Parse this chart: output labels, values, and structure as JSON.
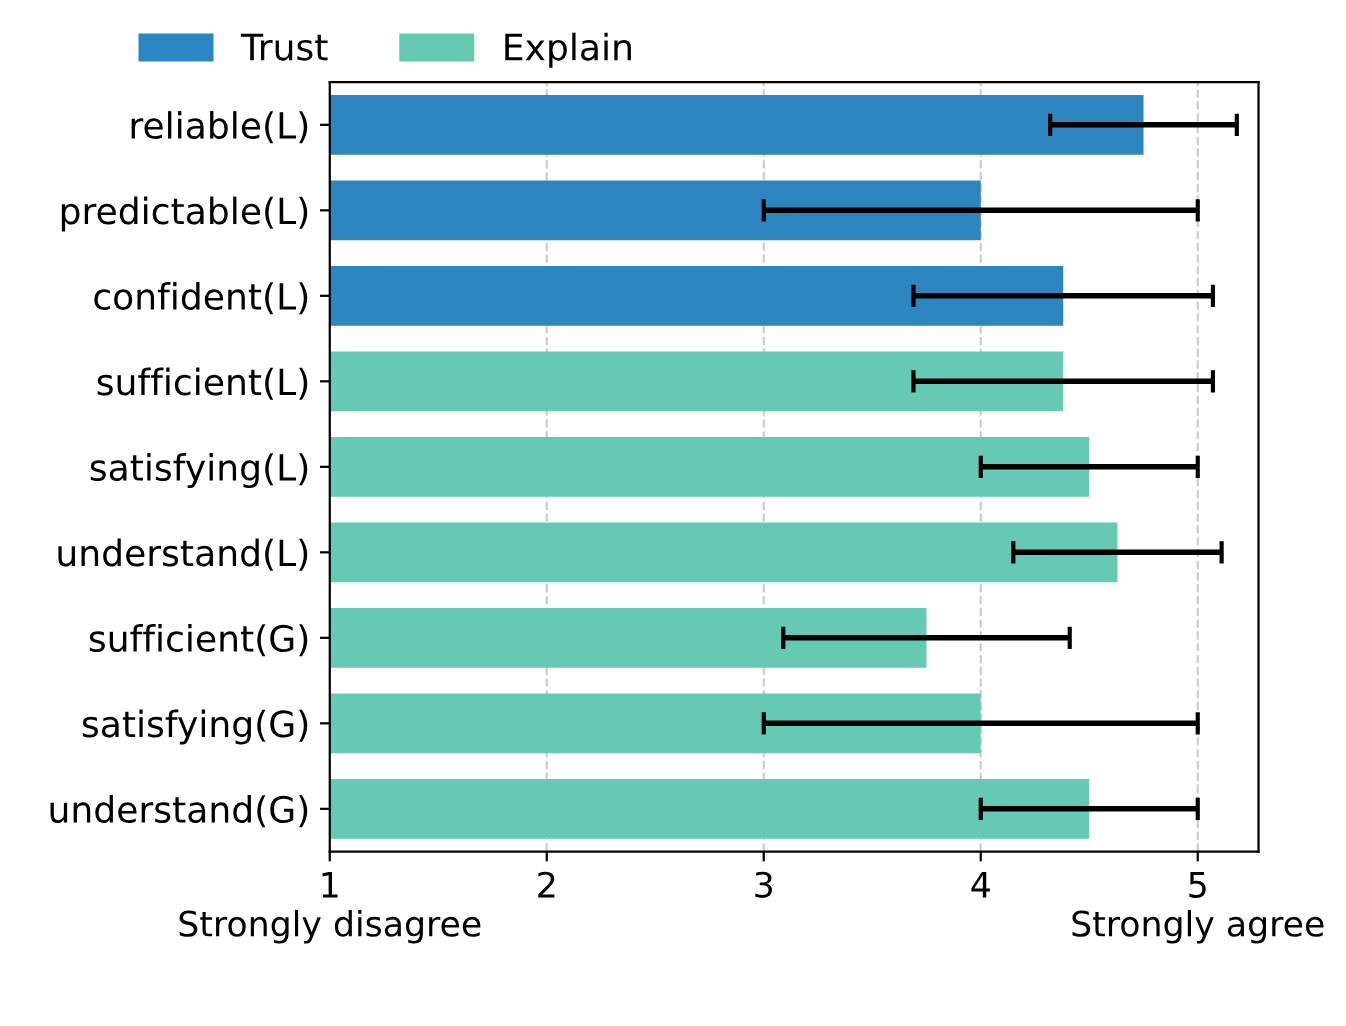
{
  "chart_data": {
    "type": "bar",
    "orientation": "horizontal",
    "categories": [
      "reliable(L)",
      "predictable(L)",
      "confident(L)",
      "sufficient(L)",
      "satisfying(L)",
      "understand(L)",
      "sufficient(G)",
      "satisfying(G)",
      "understand(G)"
    ],
    "series": [
      {
        "name": "Trust",
        "color": "#2e86c1",
        "values": [
          4.75,
          4.0,
          4.38,
          null,
          null,
          null,
          null,
          null,
          null
        ],
        "errors": [
          0.43,
          1.0,
          0.69,
          null,
          null,
          null,
          null,
          null,
          null
        ]
      },
      {
        "name": "Explain",
        "color": "#66c9b3",
        "values": [
          null,
          null,
          null,
          4.38,
          4.5,
          4.63,
          3.75,
          4.0,
          4.5
        ],
        "errors": [
          null,
          null,
          null,
          0.69,
          0.5,
          0.48,
          0.66,
          1.0,
          0.5
        ]
      }
    ],
    "xlim": [
      1,
      5.28
    ],
    "xticks": [
      {
        "value": 1,
        "label": "1\nStrongly disagree"
      },
      2,
      3,
      4,
      {
        "value": 5,
        "label": "5\nStrongly agree"
      }
    ],
    "grid": "x",
    "legend": "top left"
  }
}
